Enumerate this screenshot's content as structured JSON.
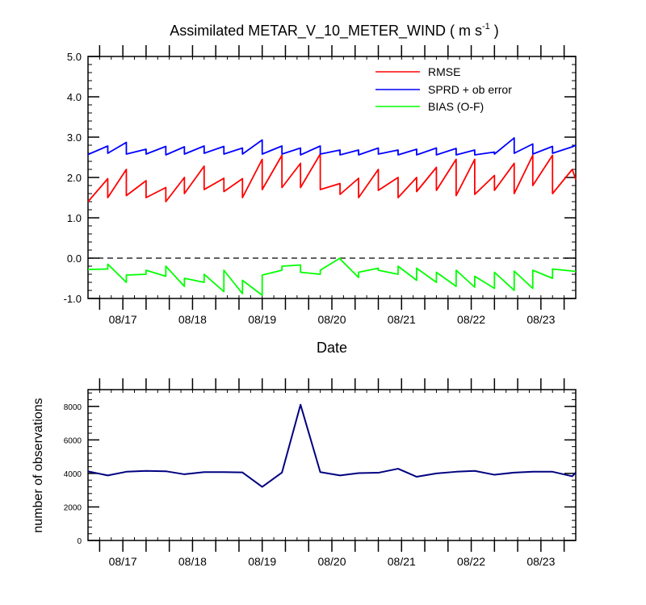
{
  "chart_data": [
    {
      "type": "line",
      "title_main": "Assimilated METAR_V_10_METER_WIND ( m s",
      "title_sup": "-1",
      "title_close": " )",
      "xlabel": "Date",
      "ylabel": "",
      "ylim": [
        -1.0,
        5.0
      ],
      "xlim": [
        0,
        42
      ],
      "yticks": [
        -1.0,
        0.0,
        1.0,
        2.0,
        3.0,
        4.0,
        5.0
      ],
      "ytick_labels": [
        "-1.0",
        "0.0",
        "1.0",
        "2.0",
        "3.0",
        "4.0",
        "5.0"
      ],
      "xticks": [
        3,
        9,
        15,
        21,
        27,
        33,
        39
      ],
      "xtick_labels": [
        "08/17",
        "08/18",
        "08/19",
        "08/20",
        "08/21",
        "08/22",
        "08/23"
      ],
      "zero_line": 0.0,
      "legend_position": "top-right",
      "series": [
        {
          "name": "RMSE",
          "color": "#ff0000",
          "x": [
            0,
            1.7,
            1.7,
            3.3,
            3.3,
            5,
            5,
            6.7,
            6.7,
            8.3,
            8.3,
            10,
            10,
            11.7,
            11.7,
            13.3,
            13.3,
            15,
            15,
            16.7,
            16.7,
            18.3,
            18.3,
            20,
            20,
            21.7,
            21.7,
            23.3,
            23.3,
            25,
            25,
            26.7,
            26.7,
            28.3,
            28.3,
            30,
            30,
            31.7,
            31.7,
            33.3,
            33.3,
            35,
            35,
            36.7,
            36.7,
            38.3,
            38.3,
            40,
            40,
            41.7,
            42
          ],
          "values": [
            1.4,
            1.97,
            1.5,
            2.2,
            1.55,
            1.92,
            1.5,
            1.75,
            1.4,
            2.0,
            1.6,
            2.28,
            1.7,
            1.98,
            1.65,
            1.97,
            1.5,
            2.45,
            1.7,
            2.55,
            1.75,
            2.35,
            1.75,
            2.58,
            1.7,
            1.85,
            1.58,
            1.98,
            1.5,
            2.2,
            1.68,
            2.0,
            1.5,
            2.0,
            1.65,
            2.25,
            1.68,
            2.45,
            1.55,
            2.45,
            1.58,
            2.05,
            1.68,
            2.35,
            1.6,
            2.55,
            1.8,
            2.55,
            1.6,
            2.2,
            1.95
          ]
        },
        {
          "name": "SPRD + ob error",
          "color": "#0000ff",
          "x": [
            0,
            1.7,
            1.7,
            3.3,
            3.3,
            5,
            5,
            6.7,
            6.7,
            8.3,
            8.3,
            10,
            10,
            11.7,
            11.7,
            13.3,
            13.3,
            15,
            15,
            16.7,
            16.7,
            18.3,
            18.3,
            20,
            20,
            21.7,
            21.7,
            23.3,
            23.3,
            25,
            25,
            26.7,
            26.7,
            28.3,
            28.3,
            30,
            30,
            31.7,
            31.7,
            33.3,
            33.3,
            35,
            35,
            36.7,
            36.7,
            38.3,
            38.3,
            40,
            40,
            41.7,
            42
          ],
          "values": [
            2.57,
            2.78,
            2.6,
            2.87,
            2.58,
            2.7,
            2.58,
            2.77,
            2.56,
            2.76,
            2.58,
            2.78,
            2.6,
            2.77,
            2.58,
            2.73,
            2.58,
            2.93,
            2.58,
            2.78,
            2.58,
            2.73,
            2.56,
            2.78,
            2.58,
            2.68,
            2.56,
            2.68,
            2.56,
            2.73,
            2.58,
            2.68,
            2.56,
            2.7,
            2.56,
            2.73,
            2.56,
            2.72,
            2.56,
            2.68,
            2.56,
            2.63,
            2.58,
            2.98,
            2.6,
            2.83,
            2.58,
            2.77,
            2.6,
            2.76,
            2.8
          ]
        },
        {
          "name": "BIAS (O-F)",
          "color": "#00ff00",
          "x": [
            0,
            1.7,
            1.7,
            3.3,
            3.3,
            5,
            5,
            6.7,
            6.7,
            8.3,
            8.3,
            10,
            10,
            11.7,
            11.7,
            13.3,
            13.3,
            15,
            15,
            16.7,
            16.7,
            18.3,
            18.3,
            20,
            20,
            21.7,
            21.7,
            23.3,
            23.3,
            25,
            25,
            26.7,
            26.7,
            28.3,
            28.3,
            30,
            30,
            31.7,
            31.7,
            33.3,
            33.3,
            35,
            35,
            36.7,
            36.7,
            38.3,
            38.3,
            40,
            40,
            41.7,
            42
          ],
          "values": [
            -0.28,
            -0.27,
            -0.15,
            -0.6,
            -0.42,
            -0.4,
            -0.3,
            -0.45,
            -0.2,
            -0.7,
            -0.5,
            -0.6,
            -0.4,
            -0.83,
            -0.3,
            -0.88,
            -0.55,
            -0.92,
            -0.42,
            -0.3,
            -0.2,
            -0.17,
            -0.35,
            -0.4,
            -0.3,
            0.0,
            -0.02,
            -0.48,
            -0.35,
            -0.25,
            -0.3,
            -0.4,
            -0.2,
            -0.55,
            -0.25,
            -0.6,
            -0.35,
            -0.7,
            -0.3,
            -0.72,
            -0.45,
            -0.75,
            -0.35,
            -0.8,
            -0.32,
            -0.75,
            -0.3,
            -0.5,
            -0.27,
            -0.32,
            -0.33
          ]
        }
      ]
    },
    {
      "type": "line",
      "title": "",
      "xlabel": "",
      "ylabel": "number of observations",
      "ylim": [
        0,
        9000
      ],
      "xlim": [
        0,
        42
      ],
      "yticks": [
        0,
        2000,
        4000,
        6000,
        8000
      ],
      "ytick_labels": [
        "0",
        "2000",
        "4000",
        "6000",
        "8000"
      ],
      "xticks": [
        3,
        9,
        15,
        21,
        27,
        33,
        39
      ],
      "xtick_labels": [
        "08/17",
        "08/18",
        "08/19",
        "08/20",
        "08/21",
        "08/22",
        "08/23"
      ],
      "series": [
        {
          "name": "observations",
          "color": "#000080",
          "x": [
            0,
            1.7,
            3.3,
            5,
            6.7,
            8.3,
            10,
            11.7,
            13.3,
            15,
            16.7,
            18.3,
            20,
            21.7,
            23.3,
            25,
            26.7,
            28.3,
            30,
            31.7,
            33.3,
            35,
            36.7,
            38.3,
            40,
            41.7,
            42
          ],
          "values": [
            4120,
            3880,
            4100,
            4150,
            4130,
            3950,
            4080,
            4080,
            4060,
            3200,
            4050,
            8100,
            4080,
            3880,
            4020,
            4040,
            4280,
            3800,
            4000,
            4100,
            4150,
            3920,
            4050,
            4100,
            4100,
            3830,
            4050
          ]
        }
      ]
    }
  ]
}
